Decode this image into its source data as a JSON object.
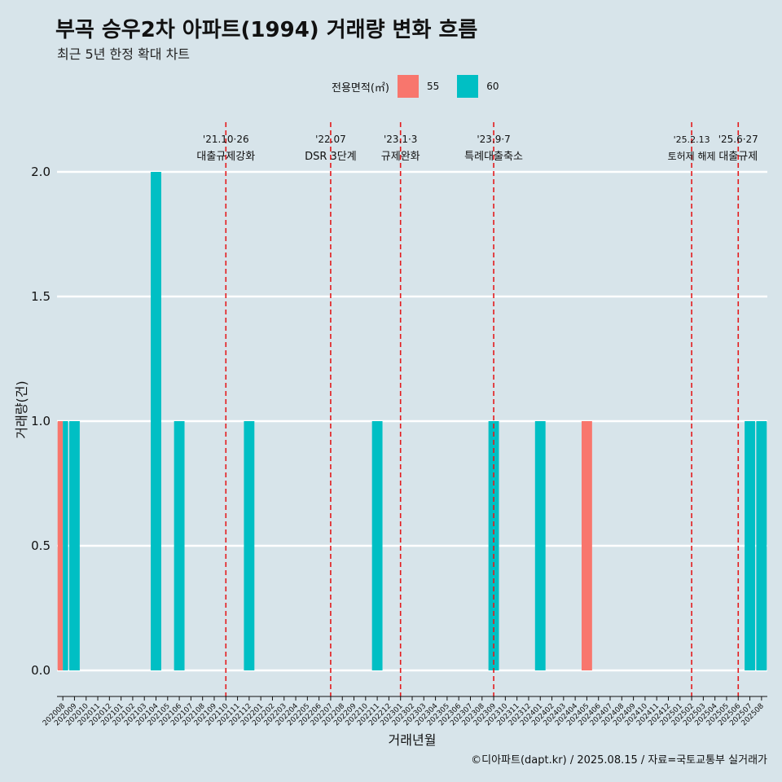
{
  "title": "부곡 승우2차 아파트(1994) 거래량 변화 흐름",
  "subtitle": "최근 5년 한정 확대 차트",
  "caption": "©디아파트(dapt.kr) / 2025.08.15 / 자료=국토교통부 실거래가",
  "legend": {
    "title": "전용면적(㎡)",
    "items": [
      {
        "label": "55",
        "color": "#f8766d"
      },
      {
        "label": "60",
        "color": "#00bfc4"
      }
    ]
  },
  "chart_data": {
    "type": "bar",
    "xlabel": "거래년월",
    "ylabel": "거래량(건)",
    "ylim": [
      0,
      2
    ],
    "yticks": [
      "0.0",
      "0.5",
      "1.0",
      "1.5",
      "2.0"
    ],
    "grid": "horizontal",
    "legend_position": "top",
    "categories": [
      "202008",
      "202009",
      "202010",
      "202011",
      "202012",
      "202101",
      "202102",
      "202103",
      "202104",
      "202105",
      "202106",
      "202107",
      "202108",
      "202109",
      "202110",
      "202111",
      "202112",
      "202201",
      "202202",
      "202203",
      "202204",
      "202205",
      "202206",
      "202207",
      "202208",
      "202209",
      "202210",
      "202211",
      "202212",
      "202301",
      "202302",
      "202303",
      "202304",
      "202305",
      "202306",
      "202307",
      "202308",
      "202309",
      "202310",
      "202311",
      "202312",
      "202401",
      "202402",
      "202403",
      "202404",
      "202405",
      "202406",
      "202407",
      "202408",
      "202409",
      "202410",
      "202411",
      "202412",
      "202501",
      "202502",
      "202503",
      "202504",
      "202505",
      "202506",
      "202507",
      "202508"
    ],
    "bars": [
      {
        "x": "202008",
        "series": "55",
        "value": 1
      },
      {
        "x": "202008",
        "series": "60",
        "value": 1
      },
      {
        "x": "202009",
        "series": "60",
        "value": 1
      },
      {
        "x": "202104",
        "series": "60",
        "value": 2
      },
      {
        "x": "202106",
        "series": "60",
        "value": 1
      },
      {
        "x": "202112",
        "series": "60",
        "value": 1
      },
      {
        "x": "202211",
        "series": "60",
        "value": 1
      },
      {
        "x": "202309",
        "series": "60",
        "value": 1
      },
      {
        "x": "202401",
        "series": "60",
        "value": 1
      },
      {
        "x": "202405",
        "series": "55",
        "value": 1
      },
      {
        "x": "202507",
        "series": "60",
        "value": 1
      },
      {
        "x": "202508",
        "series": "60",
        "value": 1
      }
    ],
    "events": [
      {
        "x": "202110",
        "date": "'21.10·26",
        "label": "대출규제강화"
      },
      {
        "x": "202207",
        "date": "'22.07",
        "label": "DSR 3단계"
      },
      {
        "x": "202301",
        "date": "'23.1·3",
        "label": "규제완화"
      },
      {
        "x": "202309",
        "date": "'23.9·7",
        "label": "특례대출축소"
      },
      {
        "x": "202502",
        "date": "'25.2.13",
        "label": "토허제 해제"
      },
      {
        "x": "202506",
        "date": "'25.6·27",
        "label": "대출규제"
      }
    ]
  }
}
